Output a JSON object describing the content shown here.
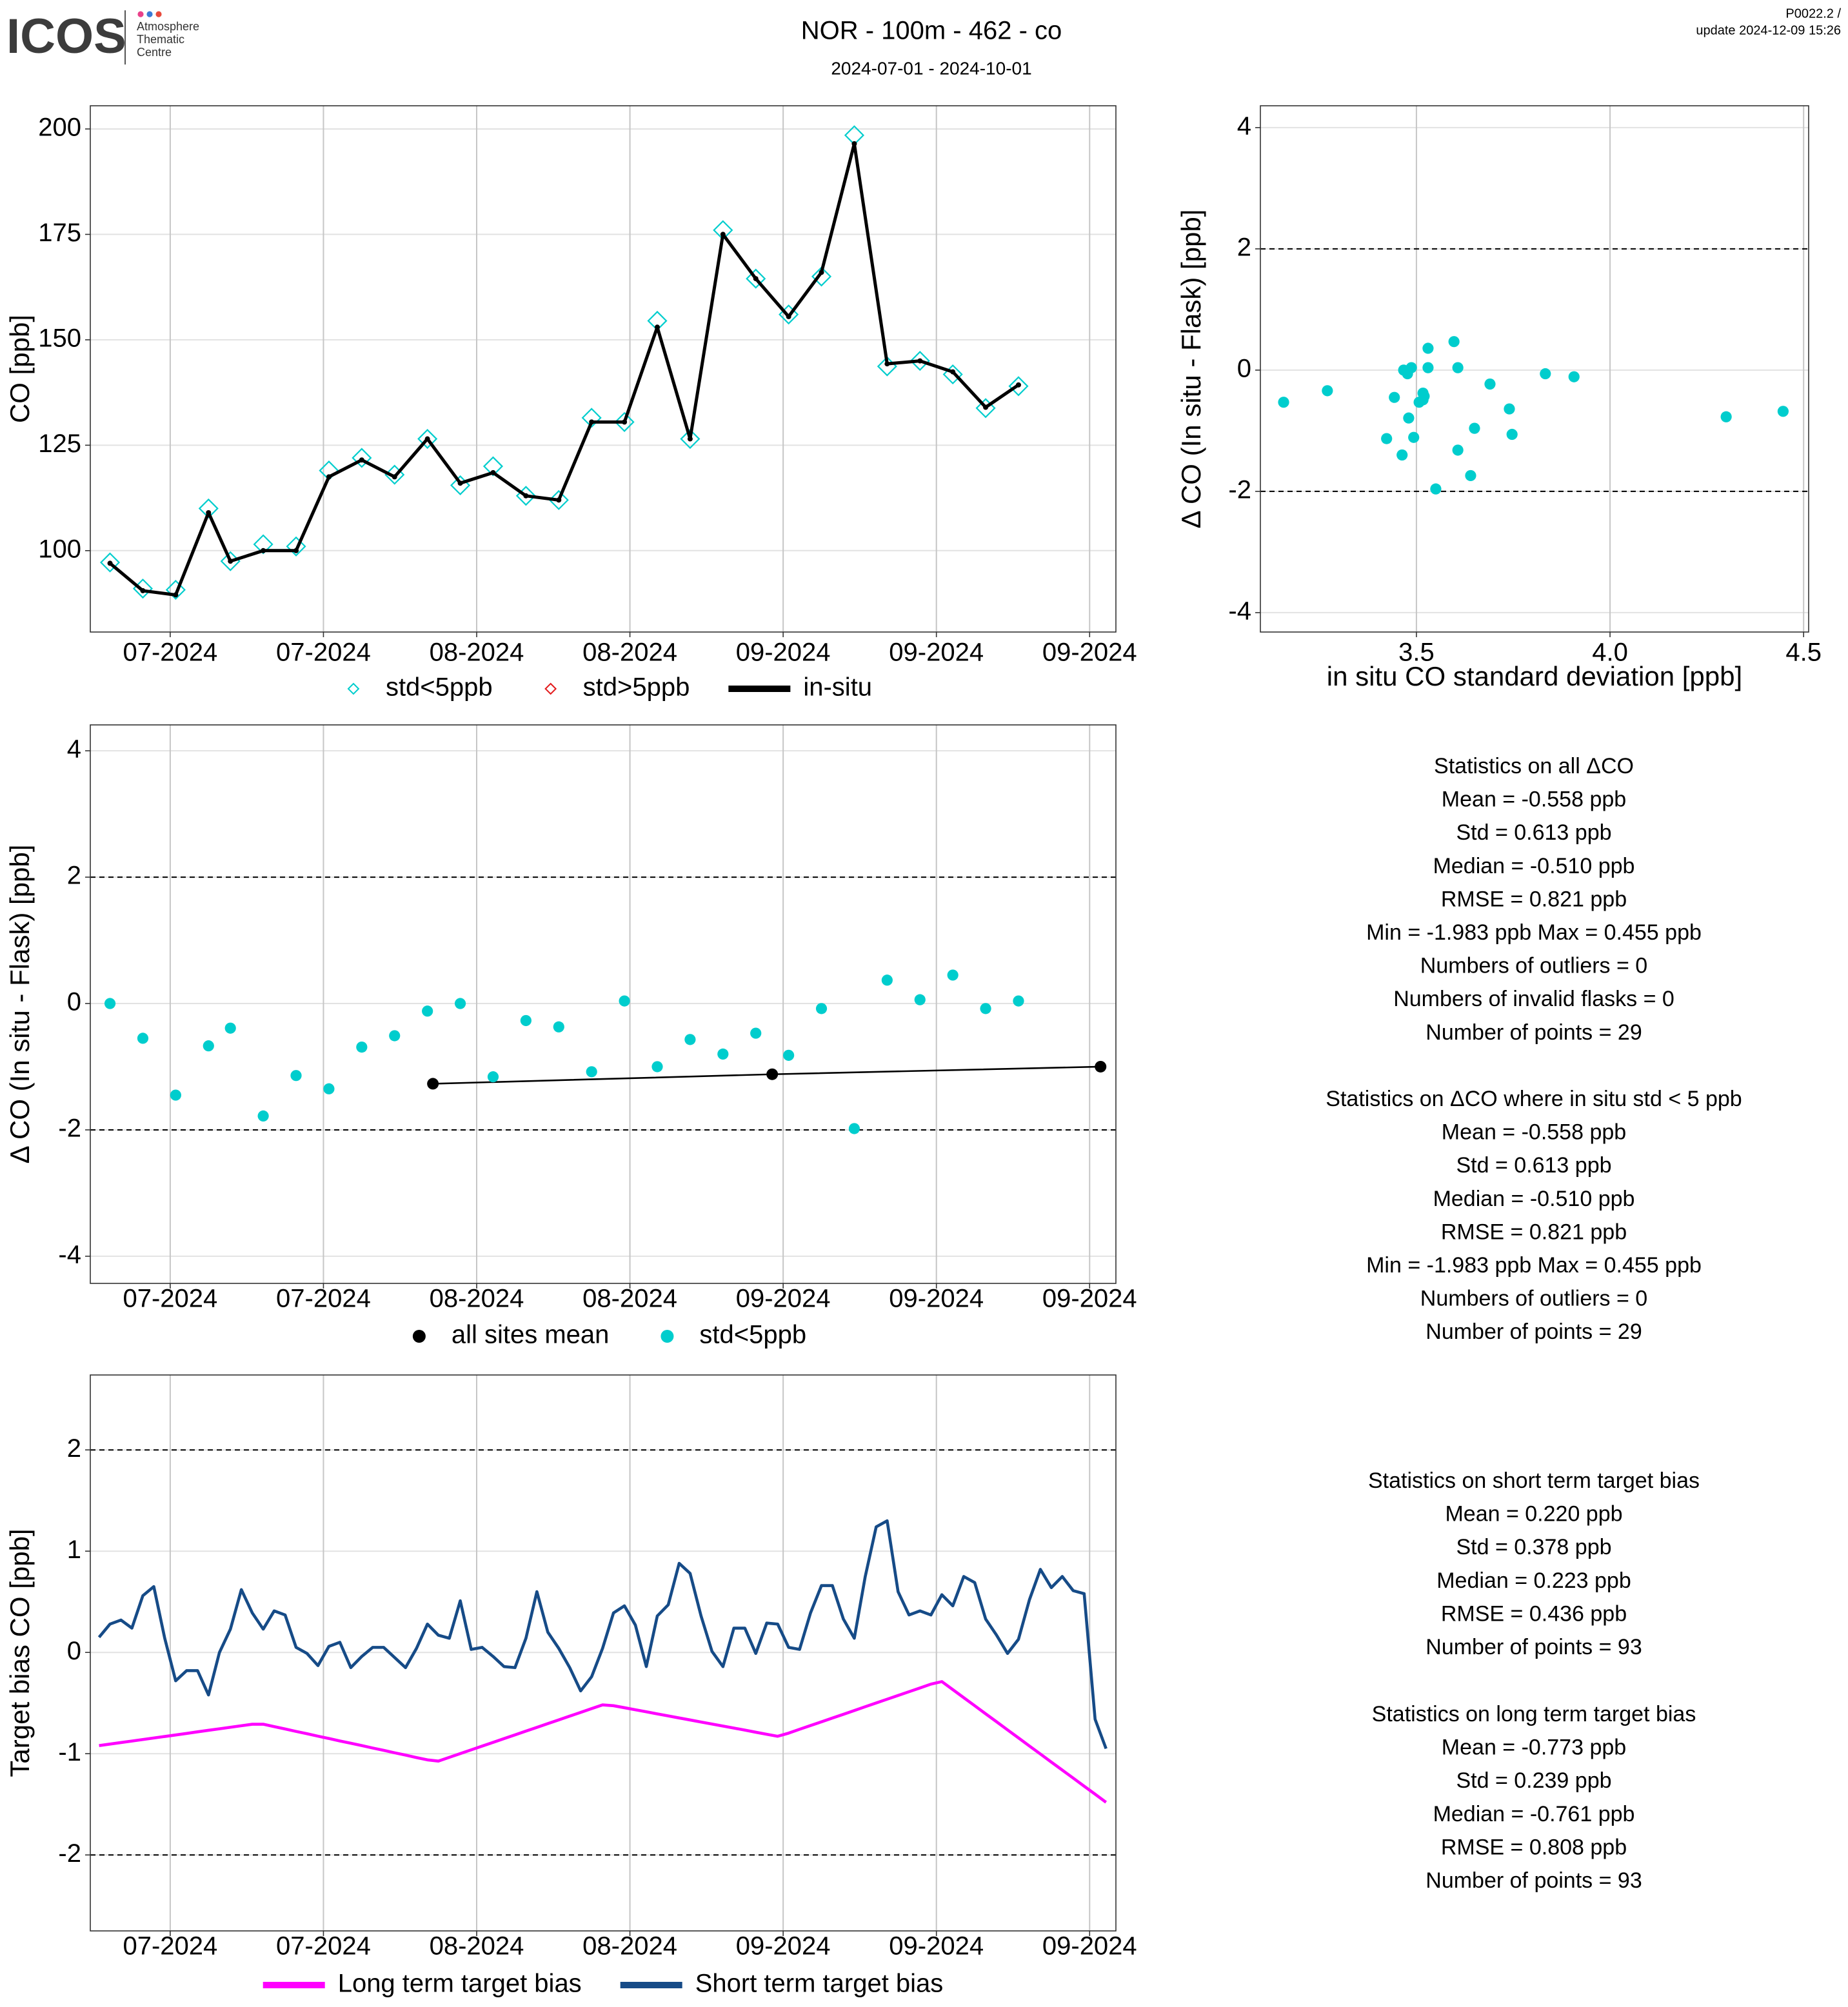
{
  "header": {
    "logo": "ICOS",
    "logo_sub": [
      "Atmosphere",
      "Thematic",
      "Centre"
    ],
    "title": "NOR - 100m - 462 - co",
    "period": "2024-07-01 - 2024-10-01",
    "version": "P0022.2 /",
    "update": "update  2024-12-09 15:26"
  },
  "chart_data": [
    {
      "type": "line",
      "ylabel": "CO [ppb]",
      "xlim": [
        -0.3,
        93.4
      ],
      "ylim": [
        80.7,
        205.5
      ],
      "xticks": [
        {
          "value": 7,
          "label": "07-2024"
        },
        {
          "value": 21,
          "label": "07-2024"
        },
        {
          "value": 35,
          "label": "08-2024"
        },
        {
          "value": 49,
          "label": "08-2024"
        },
        {
          "value": 63,
          "label": "09-2024"
        },
        {
          "value": 77,
          "label": "09-2024"
        },
        {
          "value": 91,
          "label": "09-2024"
        }
      ],
      "yticks": [
        100,
        125,
        150,
        175,
        200
      ],
      "grid": true,
      "legend": "bottom",
      "x": [
        1.5,
        4.5,
        7.5,
        10.5,
        12.5,
        15.5,
        18.5,
        21.5,
        24.5,
        27.5,
        30.5,
        33.5,
        36.5,
        39.5,
        42.5,
        45.5,
        48.5,
        51.5,
        54.5,
        57.5,
        60.5,
        63.5,
        66.5,
        69.5,
        72.5,
        75.5,
        78.5,
        81.5,
        84.5
      ],
      "series": [
        {
          "name": "std<5ppb",
          "color": "#00cdcd",
          "marker": "diamond",
          "values": [
            97.2,
            91,
            90.7,
            110,
            97.5,
            101.5,
            101,
            119,
            122,
            118,
            126.5,
            115.5,
            120,
            113,
            112,
            131.5,
            130.5,
            154.5,
            126.5,
            176,
            164.5,
            156,
            165,
            198.5,
            143.7,
            145,
            141.8,
            133.8,
            139
          ]
        },
        {
          "name": "std>5ppb",
          "color": "#e31a1c",
          "marker": "diamond",
          "values": [
            null,
            null,
            null,
            null,
            null,
            null,
            null,
            null,
            null,
            null,
            null,
            null,
            null,
            null,
            null,
            null,
            null,
            null,
            null,
            null,
            null,
            null,
            null,
            null,
            null,
            null,
            null,
            null,
            null
          ]
        },
        {
          "name": "in-situ",
          "color": "#000000",
          "marker": "line-dot",
          "values": [
            97,
            90.5,
            89.5,
            109,
            97.5,
            100,
            100,
            117.5,
            121.5,
            117.5,
            126.5,
            116,
            118.5,
            113,
            112,
            130.5,
            130.5,
            153,
            126.5,
            175,
            164.5,
            155.5,
            166,
            196.5,
            144.3,
            145,
            142.4,
            134,
            139.3
          ]
        }
      ]
    },
    {
      "type": "scatter",
      "ylabel": "Δ CO (In situ - Flask) [ppb]",
      "xlabel": "in situ CO standard deviation [ppb]",
      "xlim": [
        3.097,
        4.513
      ],
      "ylim": [
        -4.32,
        4.36
      ],
      "xticks": [
        3.5,
        {
          "value": 4,
          "label": "4.0"
        },
        4.5
      ],
      "yticks": [
        -4,
        -2,
        0,
        2,
        4
      ],
      "grid": true,
      "hlines": [
        -2,
        2
      ],
      "x": [
        3.157,
        3.27,
        3.423,
        3.443,
        3.463,
        3.467,
        3.477,
        3.48,
        3.487,
        3.493,
        3.507,
        3.517,
        3.517,
        3.52,
        3.53,
        3.53,
        3.55,
        3.597,
        3.607,
        3.607,
        3.64,
        3.65,
        3.69,
        3.74,
        3.747,
        3.833,
        3.907,
        4.3,
        4.447
      ],
      "series": [
        {
          "color": "#00cdcd",
          "marker": "dot",
          "values": [
            -0.53,
            -0.34,
            -1.13,
            -0.45,
            -1.4,
            0,
            -0.06,
            -0.79,
            0.04,
            -1.11,
            -0.53,
            -0.38,
            -0.49,
            -0.43,
            0.36,
            0.04,
            -1.96,
            0.47,
            0.04,
            -1.32,
            -1.74,
            -0.96,
            -0.23,
            -0.64,
            -1.06,
            -0.06,
            -0.11,
            -0.77,
            -0.68
          ]
        }
      ]
    },
    {
      "type": "scatter",
      "ylabel": "Δ CO (In situ - Flask) [ppb]",
      "xlim": [
        -0.3,
        93.4
      ],
      "ylim": [
        -4.43,
        4.41
      ],
      "xticks": [
        {
          "value": 7,
          "label": "07-2024"
        },
        {
          "value": 21,
          "label": "07-2024"
        },
        {
          "value": 35,
          "label": "08-2024"
        },
        {
          "value": 49,
          "label": "08-2024"
        },
        {
          "value": 63,
          "label": "09-2024"
        },
        {
          "value": 77,
          "label": "09-2024"
        },
        {
          "value": 91,
          "label": "09-2024"
        }
      ],
      "yticks": [
        -4,
        -2,
        0,
        2,
        4
      ],
      "grid": true,
      "hlines": [
        -2,
        2
      ],
      "legend": "bottom",
      "series": [
        {
          "name": "all sites mean",
          "color": "#000000",
          "marker": "dot-line",
          "x": [
            31,
            62,
            92
          ],
          "values": [
            -1.27,
            -1.12,
            -1.0
          ]
        },
        {
          "name": "std<5ppb",
          "color": "#00cdcd",
          "marker": "dot",
          "x": [
            1.5,
            4.5,
            7.5,
            10.5,
            12.5,
            15.5,
            18.5,
            21.5,
            24.5,
            27.5,
            30.5,
            33.5,
            36.5,
            39.5,
            42.5,
            45.5,
            48.5,
            51.5,
            54.5,
            57.5,
            60.5,
            63.5,
            66.5,
            69.5,
            72.5,
            75.5,
            78.5,
            81.5,
            84.5
          ],
          "values": [
            0,
            -0.55,
            -1.45,
            -0.67,
            -0.39,
            -1.78,
            -1.14,
            -1.35,
            -0.69,
            -0.51,
            -0.12,
            0,
            -1.16,
            -0.27,
            -0.37,
            -1.08,
            0.04,
            -1.0,
            -0.57,
            -0.8,
            -0.47,
            -0.82,
            -0.08,
            -1.98,
            0.37,
            0.06,
            0.45,
            -0.08,
            0.04
          ]
        }
      ]
    },
    {
      "type": "line",
      "ylabel": "Target bias CO [ppb]",
      "xlim": [
        -0.3,
        93.4
      ],
      "ylim": [
        -2.75,
        2.74
      ],
      "xticks": [
        {
          "value": 7,
          "label": "07-2024"
        },
        {
          "value": 21,
          "label": "07-2024"
        },
        {
          "value": 35,
          "label": "08-2024"
        },
        {
          "value": 49,
          "label": "08-2024"
        },
        {
          "value": 63,
          "label": "09-2024"
        },
        {
          "value": 77,
          "label": "09-2024"
        },
        {
          "value": 91,
          "label": "09-2024"
        }
      ],
      "yticks": [
        -2,
        -1,
        0,
        1,
        2
      ],
      "grid": true,
      "hlines": [
        -2,
        2
      ],
      "legend": "bottom",
      "x": [
        0.5,
        1.5,
        2.5,
        3.5,
        4.5,
        5.5,
        6.5,
        7.5,
        8.5,
        9.5,
        10.5,
        11.5,
        12.5,
        13.5,
        14.5,
        15.5,
        16.5,
        17.5,
        18.5,
        19.5,
        20.5,
        21.5,
        22.5,
        23.5,
        24.5,
        25.5,
        26.5,
        27.5,
        28.5,
        29.5,
        30.5,
        31.5,
        32.5,
        33.5,
        34.5,
        35.5,
        36.5,
        37.5,
        38.5,
        39.5,
        40.5,
        41.5,
        42.5,
        43.5,
        44.5,
        45.5,
        46.5,
        47.5,
        48.5,
        49.5,
        50.5,
        51.5,
        52.5,
        53.5,
        54.5,
        55.5,
        56.5,
        57.5,
        58.5,
        59.5,
        60.5,
        61.5,
        62.5,
        63.5,
        64.5,
        65.5,
        66.5,
        67.5,
        68.5,
        69.5,
        70.5,
        71.5,
        72.5,
        73.5,
        74.5,
        75.5,
        76.5,
        77.5,
        78.5,
        79.5,
        80.5,
        81.5,
        82.5,
        83.5,
        84.5,
        85.5,
        86.5,
        87.5,
        88.5,
        89.5,
        90.5,
        91.5,
        92.5
      ],
      "series": [
        {
          "name": "Long term target bias",
          "color": "#ff00ff",
          "marker": "line",
          "values": [
            -0.92,
            -0.905,
            -0.89,
            -0.875,
            -0.86,
            -0.845,
            -0.83,
            -0.815,
            -0.8,
            -0.784,
            -0.769,
            -0.754,
            -0.739,
            -0.724,
            -0.709,
            -0.709,
            -0.733,
            -0.756,
            -0.78,
            -0.803,
            -0.827,
            -0.85,
            -0.874,
            -0.897,
            -0.92,
            -0.944,
            -0.967,
            -0.991,
            -1.014,
            -1.038,
            -1.061,
            -1.073,
            -1.036,
            -0.999,
            -0.962,
            -0.925,
            -0.888,
            -0.851,
            -0.814,
            -0.777,
            -0.74,
            -0.703,
            -0.666,
            -0.629,
            -0.592,
            -0.555,
            -0.518,
            -0.526,
            -0.546,
            -0.566,
            -0.586,
            -0.607,
            -0.627,
            -0.647,
            -0.667,
            -0.687,
            -0.707,
            -0.727,
            -0.747,
            -0.767,
            -0.788,
            -0.808,
            -0.828,
            -0.797,
            -0.759,
            -0.722,
            -0.685,
            -0.648,
            -0.611,
            -0.574,
            -0.536,
            -0.499,
            -0.462,
            -0.425,
            -0.388,
            -0.351,
            -0.313,
            -0.288,
            -0.367,
            -0.447,
            -0.526,
            -0.606,
            -0.685,
            -0.765,
            -0.844,
            -0.924,
            -1.003,
            -1.083,
            -1.162,
            -1.241,
            -1.321,
            -1.4,
            -1.48
          ]
        },
        {
          "name": "Short term target bias",
          "color": "#164b87",
          "marker": "line",
          "values": [
            0.15,
            0.28,
            0.32,
            0.24,
            0.56,
            0.65,
            0.14,
            -0.28,
            -0.18,
            -0.18,
            -0.42,
            0,
            0.23,
            0.62,
            0.39,
            0.23,
            0.41,
            0.37,
            0.05,
            -0.01,
            -0.13,
            0.06,
            0.1,
            -0.15,
            -0.04,
            0.05,
            0.05,
            -0.05,
            -0.15,
            0.04,
            0.28,
            0.17,
            0.14,
            0.51,
            0.03,
            0.05,
            -0.04,
            -0.14,
            -0.15,
            0.14,
            0.6,
            0.2,
            0.04,
            -0.15,
            -0.38,
            -0.24,
            0.04,
            0.39,
            0.46,
            0.27,
            -0.14,
            0.36,
            0.47,
            0.88,
            0.78,
            0.36,
            0.01,
            -0.14,
            0.24,
            0.24,
            -0.01,
            0.29,
            0.28,
            0.05,
            0.03,
            0.39,
            0.66,
            0.66,
            0.33,
            0.14,
            0.75,
            1.24,
            1.3,
            0.6,
            0.37,
            0.41,
            0.37,
            0.57,
            0.46,
            0.75,
            0.69,
            0.33,
            0.17,
            -0.01,
            0.13,
            0.52,
            0.82,
            0.64,
            0.75,
            0.61,
            0.58,
            -0.66,
            -0.95
          ]
        }
      ]
    }
  ],
  "stats": [
    [
      "Statistics on all ΔCO",
      "Mean =  -0.558 ppb",
      "Std =  0.613 ppb",
      "Median =  -0.510 ppb",
      "RMSE =  0.821 ppb",
      "Min =  -1.983 ppb Max =  0.455 ppb",
      "Numbers of outliers =  0",
      "Numbers of invalid flasks =  0",
      "Number of points =  29"
    ],
    [
      "Statistics on ΔCO where in situ std < 5 ppb",
      "Mean =  -0.558 ppb",
      "Std =  0.613 ppb",
      "Median =  -0.510 ppb",
      "RMSE =  0.821 ppb",
      "Min =  -1.983 ppb Max =  0.455 ppb",
      "Numbers of outliers =  0",
      "Number of points =  29"
    ],
    [
      "Statistics on short term target bias",
      "Mean =  0.220 ppb",
      "Std =  0.378 ppb",
      "Median =  0.223 ppb",
      "RMSE =  0.436 ppb",
      "Number of points =  93"
    ],
    [
      "Statistics on long term target bias",
      "Mean =  -0.773 ppb",
      "Std =  0.239 ppb",
      "Median =  -0.761 ppb",
      "RMSE =  0.808 ppb",
      "Number of points =  93"
    ]
  ]
}
